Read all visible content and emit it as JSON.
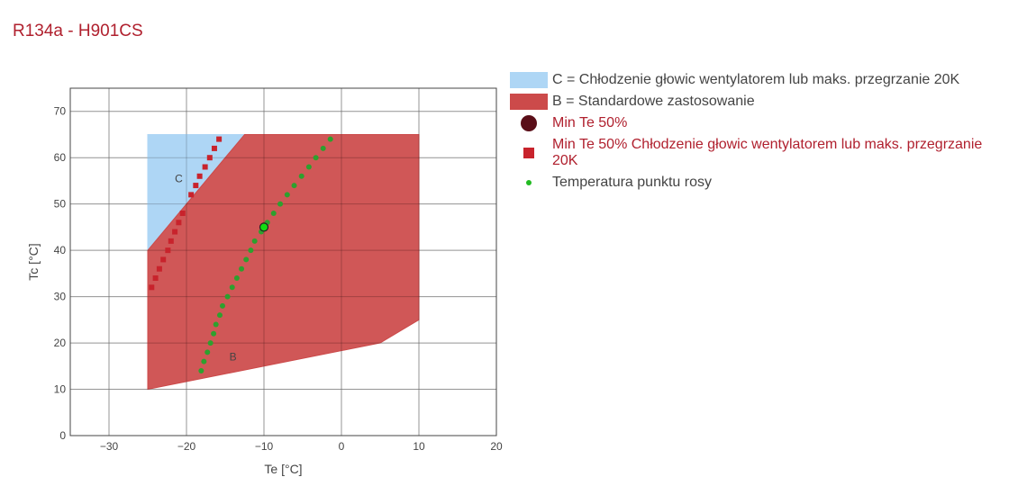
{
  "title": "R134a - H901CS",
  "colors": {
    "C": "#aed6f5",
    "B": "#cc4a4a",
    "min_te": "#5a0e18",
    "min_te_c": "#c8232c",
    "dew": "#2ea02e"
  },
  "chart_data": {
    "type": "scatter",
    "xlabel": "Te [°C]",
    "ylabel": "Tc [°C]",
    "xlim": [
      -35,
      20
    ],
    "ylim": [
      0,
      75
    ],
    "xticks": [
      -30,
      -20,
      -10,
      0,
      10,
      20
    ],
    "yticks": [
      0,
      10,
      20,
      30,
      40,
      50,
      60,
      70
    ],
    "grid": true,
    "legend": "right",
    "areas": [
      {
        "name": "C = Chłodzenie głowic wentylatorem lub maks. przegrzanie 20K",
        "label": "C",
        "label_at": [
          -21,
          55.5
        ],
        "points": [
          [
            -25,
            40
          ],
          [
            -25,
            65
          ],
          [
            -12.5,
            65
          ]
        ]
      },
      {
        "name": "B = Standardowe zastosowanie",
        "label": "B",
        "label_at": [
          -14,
          17
        ],
        "points": [
          [
            -25,
            10
          ],
          [
            -25,
            40
          ],
          [
            -12.5,
            65
          ],
          [
            10,
            65
          ],
          [
            10,
            25
          ],
          [
            5,
            20
          ]
        ]
      }
    ],
    "series": [
      {
        "name": "Min Te 50%",
        "marker": "circle",
        "points": [
          [
            -10,
            45
          ]
        ]
      },
      {
        "name": "Min Te 50% Chłodzenie głowic wentylatorem lub maks. przegrzanie 20K",
        "marker": "square",
        "points": [
          [
            -24.5,
            32
          ],
          [
            -24,
            34
          ],
          [
            -23.5,
            36
          ],
          [
            -23,
            38
          ],
          [
            -22.4,
            40
          ],
          [
            -22,
            42
          ],
          [
            -21.5,
            44
          ],
          [
            -21,
            46
          ],
          [
            -20.5,
            48
          ],
          [
            -19.4,
            52
          ],
          [
            -18.8,
            54
          ],
          [
            -18.3,
            56
          ],
          [
            -17.6,
            58
          ],
          [
            -17,
            60
          ],
          [
            -16.4,
            62
          ],
          [
            -15.8,
            64
          ]
        ]
      },
      {
        "name": "Temperatura punktu rosy",
        "marker": "dot",
        "points": [
          [
            -18.1,
            14
          ],
          [
            -17.75,
            16
          ],
          [
            -17.3,
            18
          ],
          [
            -16.9,
            20
          ],
          [
            -16.5,
            22
          ],
          [
            -16.2,
            24
          ],
          [
            -15.7,
            26
          ],
          [
            -15.35,
            28
          ],
          [
            -14.7,
            30
          ],
          [
            -14.1,
            32
          ],
          [
            -13.5,
            34
          ],
          [
            -12.9,
            36
          ],
          [
            -12.3,
            38
          ],
          [
            -11.7,
            40
          ],
          [
            -11.2,
            42
          ],
          [
            -10.35,
            44
          ],
          [
            -9.57,
            46
          ],
          [
            -8.75,
            48
          ],
          [
            -7.9,
            50
          ],
          [
            -7.0,
            52
          ],
          [
            -6.1,
            54
          ],
          [
            -5.15,
            56
          ],
          [
            -4.2,
            58
          ],
          [
            -3.3,
            60
          ],
          [
            -2.36,
            62
          ],
          [
            -1.43,
            64
          ]
        ]
      }
    ]
  }
}
